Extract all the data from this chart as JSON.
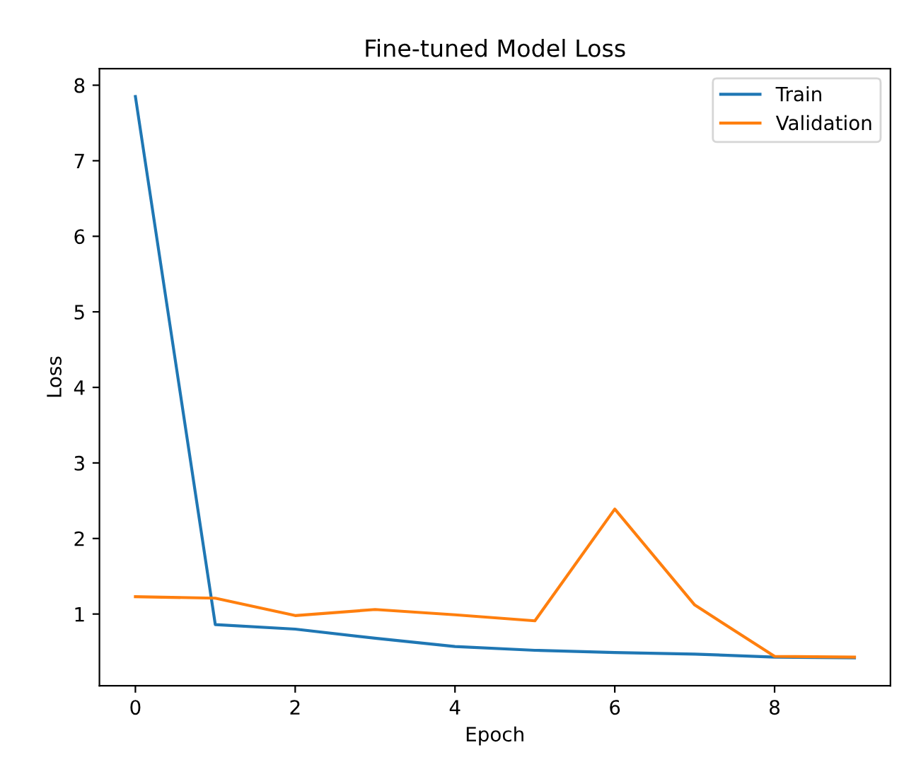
{
  "chart_data": {
    "type": "line",
    "title": "Fine-tuned Model Loss",
    "xlabel": "Epoch",
    "ylabel": "Loss",
    "x": [
      0,
      1,
      2,
      3,
      4,
      5,
      6,
      7,
      8,
      9
    ],
    "series": [
      {
        "name": "Train",
        "color": "#1f77b4",
        "values": [
          7.85,
          0.86,
          0.8,
          0.68,
          0.57,
          0.52,
          0.49,
          0.47,
          0.43,
          0.42
        ]
      },
      {
        "name": "Validation",
        "color": "#ff7f0e",
        "values": [
          1.23,
          1.21,
          0.98,
          1.06,
          0.99,
          0.91,
          2.39,
          1.12,
          0.44,
          0.43
        ]
      }
    ],
    "xlim": [
      -0.45,
      9.45
    ],
    "xticks": [
      0,
      2,
      4,
      6,
      8
    ],
    "ylim": [
      0.05,
      8.22
    ],
    "yticks": [
      1,
      2,
      3,
      4,
      5,
      6,
      7,
      8
    ],
    "grid": false,
    "legend": "top right",
    "marker": "none",
    "line_style": "solid"
  }
}
